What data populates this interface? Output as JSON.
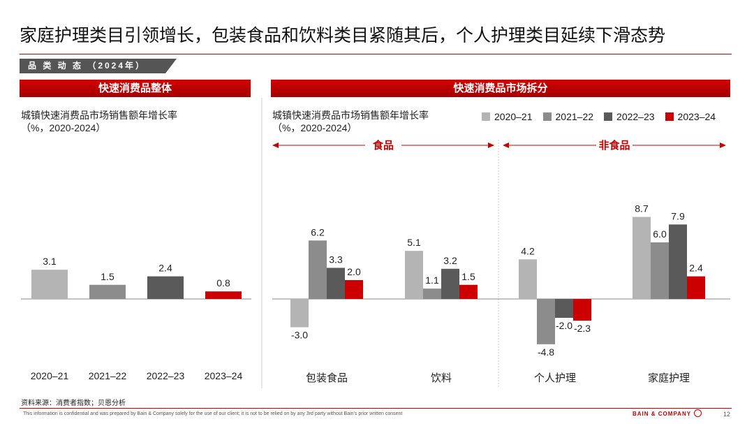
{
  "title": "家庭护理类目引领增长，包装食品和饮料类目紧随其后，个人护理类目延续下滑态势",
  "section_tag": "品 类 动 态 （2024年）",
  "left_panel": {
    "header": "快速消费品整体",
    "subtitle_line1": "城镇快速消费品市场销售额年增长率",
    "subtitle_line2": "（%，2020-2024）"
  },
  "right_panel": {
    "header": "快速消费品市场拆分",
    "subtitle_line1": "城镇快速消费品市场销售额年增长率",
    "subtitle_line2": "（%，2020-2024）",
    "group_food": "食品",
    "group_nonfood": "非食品"
  },
  "legend": [
    "2020–21",
    "2021–22",
    "2022–23",
    "2023–24"
  ],
  "colors": {
    "s2020": "#b4b4b4",
    "s2021": "#8c8c8c",
    "s2022": "#5a5a5a",
    "s2023": "#cc0000",
    "accent": "#c00000"
  },
  "chart_data": [
    {
      "type": "bar",
      "title": "快速消费品整体",
      "subtitle": "城镇快速消费品市场销售额年增长率（%，2020-2024）",
      "categories": [
        "2020–21",
        "2021–22",
        "2022–23",
        "2023–24"
      ],
      "values": [
        3.1,
        1.5,
        2.4,
        0.8
      ],
      "colors": [
        "#b4b4b4",
        "#8c8c8c",
        "#5a5a5a",
        "#cc0000"
      ],
      "data_labels": [
        "3.1",
        "1.5",
        "2.4",
        "0.8"
      ]
    },
    {
      "type": "bar",
      "title": "快速消费品市场拆分",
      "subtitle": "城镇快速消费品市场销售额年增长率（%，2020-2024）",
      "categories": [
        "包装食品",
        "饮料",
        "个人护理",
        "家庭护理"
      ],
      "groups": [
        {
          "name": "食品",
          "categories": [
            "包装食品",
            "饮料"
          ]
        },
        {
          "name": "非食品",
          "categories": [
            "个人护理",
            "家庭护理"
          ]
        }
      ],
      "series": [
        {
          "name": "2020–21",
          "values": [
            -3.0,
            5.1,
            4.2,
            8.7
          ],
          "labels": [
            "-3.0",
            "5.1",
            "4.2",
            "8.7"
          ]
        },
        {
          "name": "2021–22",
          "values": [
            6.2,
            1.1,
            -4.8,
            6.0
          ],
          "labels": [
            "6.2",
            "1.1",
            "-4.8",
            "6.0"
          ]
        },
        {
          "name": "2022–23",
          "values": [
            3.3,
            3.2,
            -2.0,
            7.9
          ],
          "labels": [
            "3.3",
            "3.2",
            "-2.0",
            "7.9"
          ]
        },
        {
          "name": "2023–24",
          "values": [
            2.0,
            1.5,
            -2.3,
            2.4
          ],
          "labels": [
            "2.0",
            "1.5",
            "-2.3",
            "2.4"
          ]
        }
      ],
      "legend_position": "top-right"
    }
  ],
  "source": "资料来源：消费者指数；贝恩分析",
  "disclaimer": "This information is confidential and was prepared by Bain & Company solely for the use of our client; it is not to be relied on by any 3rd party without Bain's prior written consent",
  "brand": "BAIN & COMPANY",
  "page_number": "12"
}
